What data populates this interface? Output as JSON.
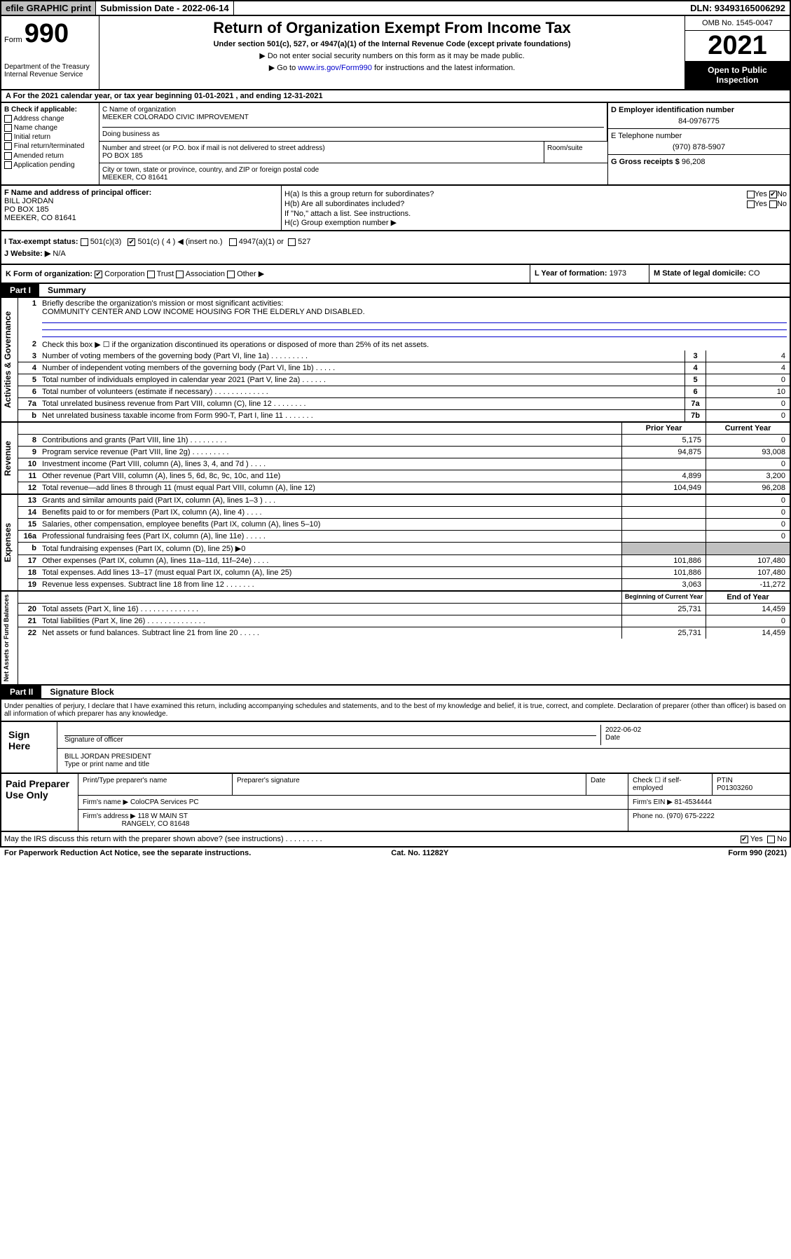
{
  "topbar": {
    "efile": "efile GRAPHIC print",
    "submission": "Submission Date - 2022-06-14",
    "dln": "DLN: 93493165006292"
  },
  "header": {
    "form_prefix": "Form",
    "form_number": "990",
    "dept": "Department of the Treasury Internal Revenue Service",
    "title": "Return of Organization Exempt From Income Tax",
    "subtitle": "Under section 501(c), 527, or 4947(a)(1) of the Internal Revenue Code (except private foundations)",
    "instruct1": "▶ Do not enter social security numbers on this form as it may be made public.",
    "instruct2_pre": "▶ Go to ",
    "instruct2_link": "www.irs.gov/Form990",
    "instruct2_post": " for instructions and the latest information.",
    "omb": "OMB No. 1545-0047",
    "year": "2021",
    "inspect": "Open to Public Inspection"
  },
  "section_a": "A For the 2021 calendar year, or tax year beginning 01-01-2021   , and ending 12-31-2021",
  "section_b": {
    "label": "B Check if applicable:",
    "opts": [
      "Address change",
      "Name change",
      "Initial return",
      "Final return/terminated",
      "Amended return",
      "Application pending"
    ]
  },
  "section_c": {
    "name_label": "C Name of organization",
    "name": "MEEKER COLORADO CIVIC IMPROVEMENT",
    "dba_label": "Doing business as",
    "addr_label": "Number and street (or P.O. box if mail is not delivered to street address)",
    "room_label": "Room/suite",
    "addr": "PO BOX 185",
    "city_label": "City or town, state or province, country, and ZIP or foreign postal code",
    "city": "MEEKER, CO  81641"
  },
  "section_d": {
    "label": "D Employer identification number",
    "value": "84-0976775"
  },
  "section_e": {
    "label": "E Telephone number",
    "value": "(970) 878-5907"
  },
  "section_g": {
    "label": "G Gross receipts $",
    "value": "96,208"
  },
  "section_f": {
    "label": "F Name and address of principal officer:",
    "name": "BILL JORDAN",
    "addr1": "PO BOX 185",
    "addr2": "MEEKER, CO  81641"
  },
  "section_h": {
    "a": "H(a)  Is this a group return for subordinates?",
    "a_no": "No",
    "b": "H(b)  Are all subordinates included?",
    "b_note": "If \"No,\" attach a list. See instructions.",
    "c": "H(c)  Group exemption number ▶",
    "yes": "Yes",
    "no": "No"
  },
  "section_i": {
    "label": "I    Tax-exempt status:",
    "opts": [
      "501(c)(3)",
      "501(c) ( 4 ) ◀ (insert no.)",
      "4947(a)(1) or",
      "527"
    ]
  },
  "section_j": {
    "label": "J   Website: ▶",
    "value": "N/A"
  },
  "section_k": {
    "label": "K Form of organization:",
    "opts": [
      "Corporation",
      "Trust",
      "Association",
      "Other ▶"
    ]
  },
  "section_l": {
    "label": "L Year of formation:",
    "value": "1973"
  },
  "section_m": {
    "label": "M State of legal domicile:",
    "value": "CO"
  },
  "part1": {
    "num": "Part I",
    "title": "Summary"
  },
  "summary": {
    "q1_label": "Briefly describe the organization's mission or most significant activities:",
    "q1_text": "COMMUNITY CENTER AND LOW INCOME HOUSING FOR THE ELDERLY AND DISABLED.",
    "q2": "Check this box ▶ ☐  if the organization discontinued its operations or disposed of more than 25% of its net assets.",
    "rows_gov": [
      {
        "n": "3",
        "t": "Number of voting members of the governing body (Part VI, line 1a)   .    .    .    .    .    .    .    .    .",
        "b": "3",
        "v": "4"
      },
      {
        "n": "4",
        "t": "Number of independent voting members of the governing body (Part VI, line 1b)   .    .    .    .    .",
        "b": "4",
        "v": "4"
      },
      {
        "n": "5",
        "t": "Total number of individuals employed in calendar year 2021 (Part V, line 2a)   .    .    .    .    .    .",
        "b": "5",
        "v": "0"
      },
      {
        "n": "6",
        "t": "Total number of volunteers (estimate if necessary)   .    .    .    .    .    .    .    .    .    .    .    .    .",
        "b": "6",
        "v": "10"
      },
      {
        "n": "7a",
        "t": "Total unrelated business revenue from Part VIII, column (C), line 12   .    .    .    .    .    .    .    .",
        "b": "7a",
        "v": "0"
      },
      {
        "n": "b",
        "t": "Net unrelated business taxable income from Form 990-T, Part I, line 11   .    .    .    .    .    .    .",
        "b": "7b",
        "v": "0"
      }
    ],
    "col_hdr": {
      "prior": "Prior Year",
      "current": "Current Year"
    },
    "rows_rev": [
      {
        "n": "8",
        "t": "Contributions and grants (Part VIII, line 1h)   .    .    .    .    .    .    .    .    .",
        "p": "5,175",
        "c": "0"
      },
      {
        "n": "9",
        "t": "Program service revenue (Part VIII, line 2g)   .    .    .    .    .    .    .    .    .",
        "p": "94,875",
        "c": "93,008"
      },
      {
        "n": "10",
        "t": "Investment income (Part VIII, column (A), lines 3, 4, and 7d )   .    .    .    .",
        "p": "",
        "c": "0"
      },
      {
        "n": "11",
        "t": "Other revenue (Part VIII, column (A), lines 5, 6d, 8c, 9c, 10c, and 11e)",
        "p": "4,899",
        "c": "3,200"
      },
      {
        "n": "12",
        "t": "Total revenue—add lines 8 through 11 (must equal Part VIII, column (A), line 12)",
        "p": "104,949",
        "c": "96,208"
      }
    ],
    "rows_exp": [
      {
        "n": "13",
        "t": "Grants and similar amounts paid (Part IX, column (A), lines 1–3 )   .    .    .",
        "p": "",
        "c": "0"
      },
      {
        "n": "14",
        "t": "Benefits paid to or for members (Part IX, column (A), line 4)   .    .    .    .",
        "p": "",
        "c": "0"
      },
      {
        "n": "15",
        "t": "Salaries, other compensation, employee benefits (Part IX, column (A), lines 5–10)",
        "p": "",
        "c": "0"
      },
      {
        "n": "16a",
        "t": "Professional fundraising fees (Part IX, column (A), line 11e)   .    .    .    .    .",
        "p": "",
        "c": "0"
      },
      {
        "n": "b",
        "t": "Total fundraising expenses (Part IX, column (D), line 25) ▶0",
        "p": "shade",
        "c": "shade"
      },
      {
        "n": "17",
        "t": "Other expenses (Part IX, column (A), lines 11a–11d, 11f–24e)   .    .    .    .",
        "p": "101,886",
        "c": "107,480"
      },
      {
        "n": "18",
        "t": "Total expenses. Add lines 13–17 (must equal Part IX, column (A), line 25)",
        "p": "101,886",
        "c": "107,480"
      },
      {
        "n": "19",
        "t": "Revenue less expenses. Subtract line 18 from line 12   .    .    .    .    .    .    .",
        "p": "3,063",
        "c": "-11,272"
      }
    ],
    "col_hdr2": {
      "prior": "Beginning of Current Year",
      "current": "End of Year"
    },
    "rows_net": [
      {
        "n": "20",
        "t": "Total assets (Part X, line 16)   .    .    .    .    .    .    .    .    .    .    .    .    .    .",
        "p": "25,731",
        "c": "14,459"
      },
      {
        "n": "21",
        "t": "Total liabilities (Part X, line 26)   .    .    .    .    .    .    .    .    .    .    .    .    .    .",
        "p": "",
        "c": "0"
      },
      {
        "n": "22",
        "t": "Net assets or fund balances. Subtract line 21 from line 20   .    .    .    .    .",
        "p": "25,731",
        "c": "14,459"
      }
    ],
    "side_labels": {
      "gov": "Activities & Governance",
      "rev": "Revenue",
      "exp": "Expenses",
      "net": "Net Assets or Fund Balances"
    }
  },
  "part2": {
    "num": "Part II",
    "title": "Signature Block"
  },
  "perjury": "Under penalties of perjury, I declare that I have examined this return, including accompanying schedules and statements, and to the best of my knowledge and belief, it is true, correct, and complete. Declaration of preparer (other than officer) is based on all information of which preparer has any knowledge.",
  "sign": {
    "here": "Sign Here",
    "sig_label": "Signature of officer",
    "date_label": "Date",
    "date": "2022-06-02",
    "name": "BILL JORDAN  PRESIDENT",
    "name_label": "Type or print name and title"
  },
  "paid": {
    "label": "Paid Preparer Use Only",
    "print_label": "Print/Type preparer's name",
    "sig_label": "Preparer's signature",
    "date_label": "Date",
    "check_label": "Check ☐ if self-employed",
    "ptin_label": "PTIN",
    "ptin": "P01303260",
    "firm_name_label": "Firm's name    ▶",
    "firm_name": "ColoCPA Services PC",
    "firm_ein_label": "Firm's EIN ▶",
    "firm_ein": "81-4534444",
    "firm_addr_label": "Firm's address ▶",
    "firm_addr": "118 W MAIN ST",
    "firm_city": "RANGELY, CO  81648",
    "phone_label": "Phone no.",
    "phone": "(970) 675-2222"
  },
  "footer": {
    "q": "May the IRS discuss this return with the preparer shown above? (see instructions)   .    .    .    .    .    .    .    .    .",
    "yes": "Yes",
    "no": "No"
  },
  "bottom": {
    "left": "For Paperwork Reduction Act Notice, see the separate instructions.",
    "mid": "Cat. No. 11282Y",
    "right": "Form 990 (2021)"
  }
}
